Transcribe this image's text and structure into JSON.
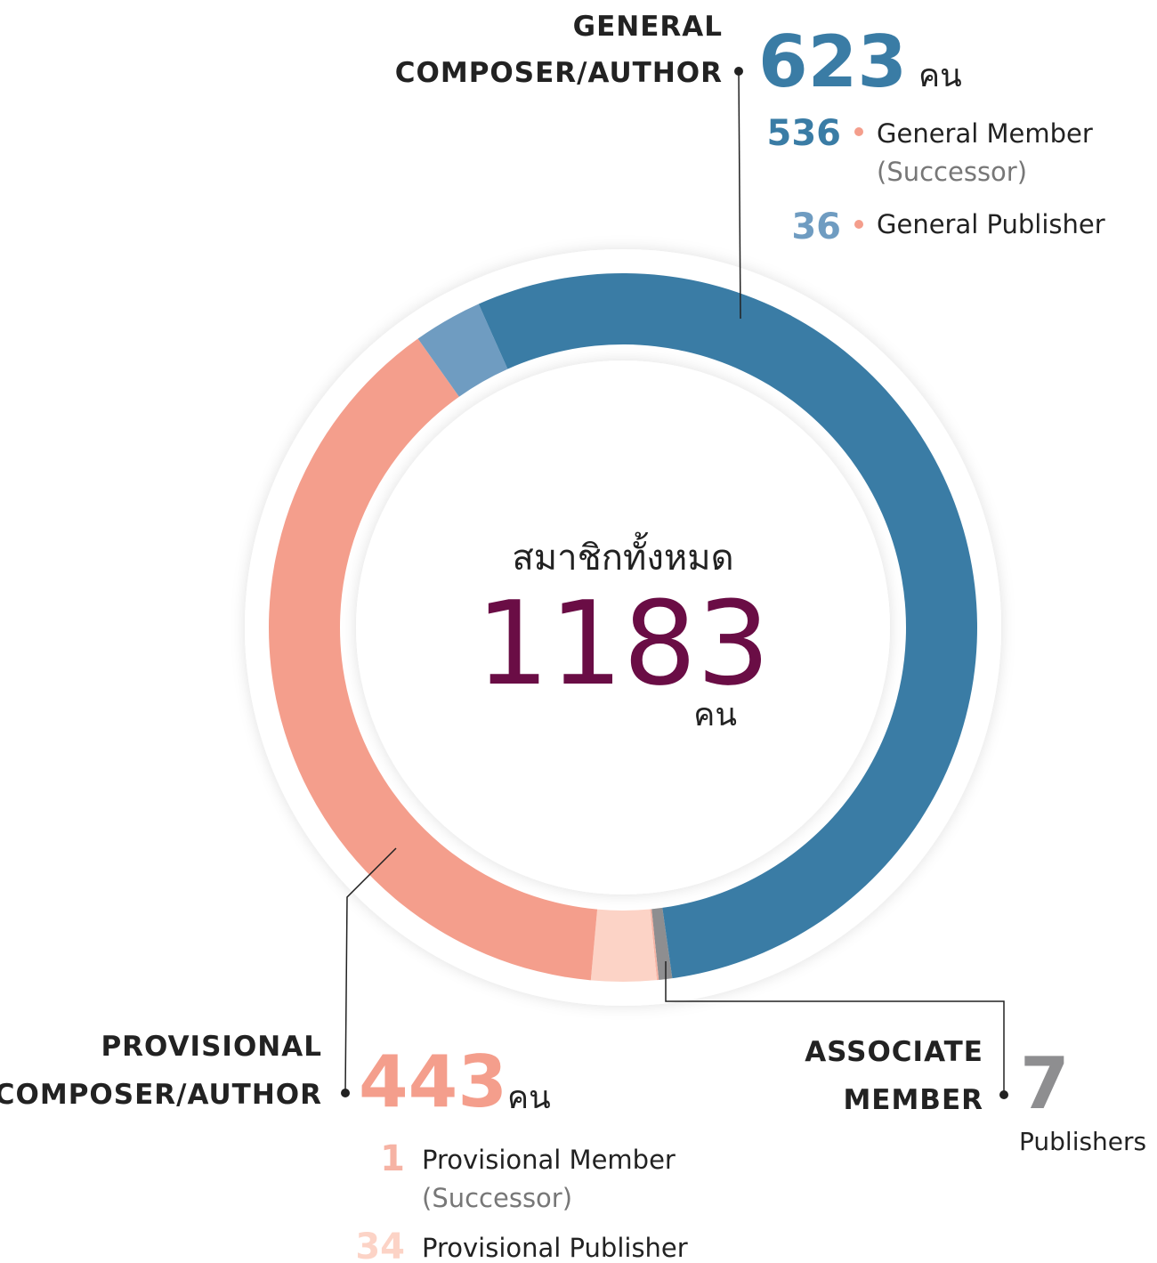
{
  "center": {
    "label": "สมาชิกทั้งหมด",
    "value": 1183,
    "unit": "คน",
    "color": "#6a0d45"
  },
  "general": {
    "title": [
      "GENERAL",
      "COMPOSER/AUTHOR"
    ],
    "value": 623,
    "unit": "คน",
    "color": "#3a7ca5",
    "items": [
      {
        "value": 536,
        "label": [
          "General Member",
          "(Successor)"
        ],
        "color": "#3a7ca5"
      },
      {
        "value": 36,
        "label": [
          "General Publisher"
        ],
        "color": "#6f9cc1"
      }
    ]
  },
  "provisional": {
    "title": [
      "PROVISIONAL",
      "COMPOSER/AUTHOR"
    ],
    "value": 443,
    "unit": "คน",
    "color": "#f49e8c",
    "items": [
      {
        "value": 1,
        "label": [
          "Provisional Member",
          "(Successor)"
        ],
        "color": "#f6b3a4"
      },
      {
        "value": 34,
        "label": [
          "Provisional Publisher"
        ],
        "color": "#fcd3c6"
      }
    ]
  },
  "associate": {
    "title": [
      "ASSOCIATE",
      "MEMBER"
    ],
    "value": 7,
    "note": "Publishers",
    "color": "#8e8e90"
  }
}
